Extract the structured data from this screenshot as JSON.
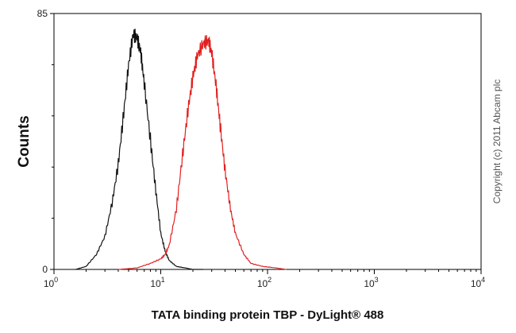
{
  "chart_data": {
    "type": "line",
    "xlabel": "TATA binding protein TBP - DyLight® 488",
    "ylabel": "Counts",
    "x_scale": "log",
    "xlim": [
      1,
      10000
    ],
    "ylim": [
      0,
      85
    ],
    "y_ticks": [
      "0",
      "85"
    ],
    "x_ticks": [
      {
        "base": "10",
        "exp": "0"
      },
      {
        "base": "10",
        "exp": "1"
      },
      {
        "base": "10",
        "exp": "2"
      },
      {
        "base": "10",
        "exp": "3"
      },
      {
        "base": "10",
        "exp": "4"
      }
    ],
    "grid": false,
    "series": [
      {
        "color": "#111111",
        "x": [
          1.6,
          2.0,
          2.5,
          3.0,
          3.5,
          4.0,
          4.5,
          5.0,
          5.5,
          6.0,
          6.5,
          7.0,
          8.0,
          9.0,
          10.0,
          11.0,
          12.0,
          14.0,
          17.0,
          20.0,
          25.0
        ],
        "y": [
          0,
          1,
          5,
          11,
          22,
          35,
          52,
          68,
          78,
          77,
          72,
          62,
          43,
          26,
          12,
          6,
          3,
          1,
          0.5,
          0,
          0
        ]
      },
      {
        "color": "#e02020",
        "x": [
          4.0,
          6.0,
          8.0,
          10.0,
          11.0,
          12.0,
          14.0,
          16.0,
          18.0,
          20.0,
          22.0,
          25.0,
          28.0,
          30.0,
          33.0,
          36.0,
          40.0,
          45.0,
          50.0,
          60.0,
          70.0,
          90.0,
          120.0,
          150.0
        ],
        "y": [
          0,
          0.5,
          2,
          3.5,
          5,
          8,
          20,
          38,
          53,
          64,
          71,
          75,
          76,
          72,
          61,
          48,
          33,
          20,
          12,
          5,
          2,
          1,
          0.5,
          0
        ]
      }
    ],
    "annotation": "Copyright (c) 2011 Abcam plc"
  }
}
